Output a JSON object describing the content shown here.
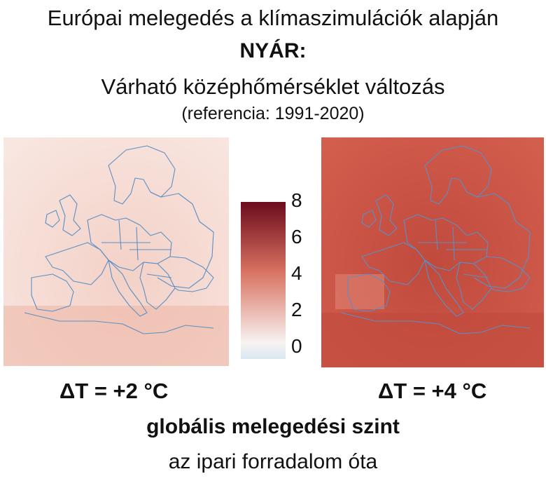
{
  "title": "Európai melegedés a klímaszimulációk alapján",
  "season": "NYÁR:",
  "subtitle": "Várható középhőmérséklet változás",
  "reference": "(referencia: 1991-2020)",
  "colorbar": {
    "ticks": [
      "8",
      "6",
      "4",
      "2",
      "0"
    ],
    "min": 0,
    "max": 8,
    "colors": {
      "low": "#d8e8f0",
      "zero": "#f7f3f2",
      "mid": "#d97462",
      "high": "#6b0b1c"
    }
  },
  "maps": [
    {
      "label": "ΔT = +2 °C",
      "fill": "#f3d1c7",
      "fill_light": "#f8e6e0",
      "fill_strong": "#ecb4a4"
    },
    {
      "label": "ΔT = +4 °C",
      "fill": "#d25e4e",
      "fill_light": "#dc7c6c",
      "fill_strong": "#c04a3c"
    }
  ],
  "border_color": "#5b8fc4",
  "footer": {
    "line1": "globális melegedési szint",
    "line2": "az ipari forradalom óta"
  }
}
